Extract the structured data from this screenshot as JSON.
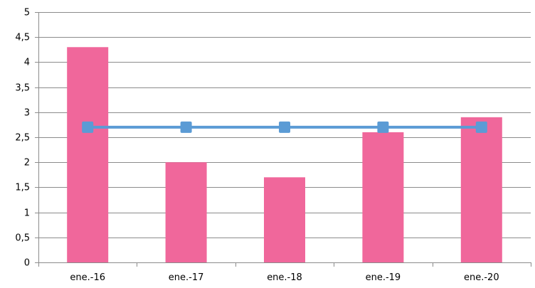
{
  "chart_data": {
    "type": "bar",
    "title": "",
    "xlabel": "",
    "ylabel": "",
    "categories": [
      "ene.-16",
      "ene.-17",
      "ene.-18",
      "ene.-19",
      "ene.-20"
    ],
    "y_ticks": [
      "0",
      "0,5",
      "1",
      "1,5",
      "2",
      "2,5",
      "3",
      "3,5",
      "4",
      "4,5",
      "5"
    ],
    "ylim": [
      0,
      5
    ],
    "grid": true,
    "legend": "none",
    "series": [
      {
        "type": "bar",
        "color": "#f0679b",
        "values": [
          4.3,
          2.0,
          1.7,
          2.6,
          2.9
        ]
      },
      {
        "type": "line",
        "color": "#5b9bd5",
        "marker": "square",
        "values": [
          2.7,
          2.7,
          2.7,
          2.7,
          2.7
        ]
      }
    ]
  }
}
